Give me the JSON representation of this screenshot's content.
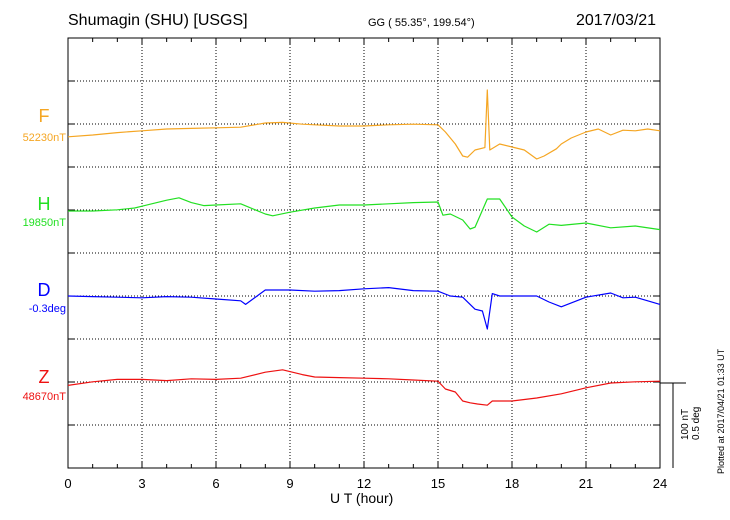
{
  "header": {
    "title": "Shumagin (SHU)  [USGS]",
    "coords": "GG ( 55.35°, 199.54°)",
    "date": "2017/03/21"
  },
  "side": {
    "scale_line1": "100 nT",
    "scale_line2": "0.5 deg",
    "plotted_note": "Plotted at 2017/04/21 01:33 UT"
  },
  "chart_data": {
    "type": "line",
    "xlabel": "U T (hour)",
    "xlim": [
      0,
      24
    ],
    "xticks": [
      "0",
      "3",
      "6",
      "9",
      "12",
      "15",
      "18",
      "21",
      "24"
    ],
    "grid": true,
    "series": [
      {
        "name": "F",
        "baseline": "52230nT",
        "color": "#f5a623",
        "x": [
          0,
          1,
          2,
          3,
          4,
          5,
          6,
          7,
          8,
          8.7,
          9.5,
          10,
          11,
          12,
          13,
          14,
          15,
          15.3,
          15.7,
          16,
          16.2,
          16.5,
          16.9,
          17,
          17.1,
          17.5,
          18,
          18.5,
          19,
          19.3,
          19.8,
          20,
          20.4,
          21,
          21.5,
          22,
          22.5,
          23,
          23.5,
          24
        ],
        "y": [
          -18,
          -15,
          -11,
          -8,
          -5,
          -4,
          -3,
          -2,
          5,
          6,
          3,
          2,
          0,
          0,
          2,
          3,
          2,
          -10,
          -30,
          -50,
          -52,
          -40,
          -36,
          60,
          -40,
          -30,
          -35,
          -40,
          -55,
          -50,
          -38,
          -30,
          -20,
          -10,
          -5,
          -15,
          -7,
          -8,
          -5,
          -8
        ]
      },
      {
        "name": "H",
        "baseline": "19850nT",
        "color": "#22e022",
        "x": [
          0,
          1,
          2,
          2.7,
          3,
          4,
          4.5,
          5,
          5.5,
          6,
          7,
          8,
          8.3,
          9,
          10,
          11,
          12,
          13,
          14,
          15,
          15.2,
          15.5,
          16,
          16.3,
          16.5,
          17,
          17.5,
          18,
          18.5,
          19,
          19.5,
          20,
          21,
          22,
          23,
          24
        ],
        "y": [
          0,
          0,
          2,
          5,
          8,
          18,
          22,
          14,
          9,
          10,
          12,
          -5,
          -8,
          -2,
          5,
          10,
          10,
          12,
          14,
          15,
          -7,
          -5,
          -15,
          -30,
          -27,
          20,
          20,
          -10,
          -25,
          -35,
          -22,
          -24,
          -20,
          -28,
          -25,
          -31
        ]
      },
      {
        "name": "D",
        "baseline": "-0.3deg",
        "color": "#0000ff",
        "x": [
          0,
          1,
          2,
          3,
          4,
          5,
          6,
          7,
          7.2,
          8,
          9,
          10,
          11,
          12,
          13,
          14,
          15,
          15.5,
          16,
          16.5,
          16.8,
          17,
          17.2,
          17.5,
          18,
          19,
          19.5,
          20,
          21,
          22,
          22.5,
          23,
          23.5,
          24
        ],
        "y": [
          0,
          -1,
          -2,
          -3,
          -1,
          -2,
          -5,
          -8,
          -14,
          10,
          10,
          8,
          9,
          12,
          14,
          9,
          8,
          0,
          -2,
          -22,
          -25,
          -55,
          4,
          0,
          0,
          0,
          -10,
          -18,
          -2,
          5,
          -3,
          -2,
          -8,
          -14
        ]
      },
      {
        "name": "Z",
        "baseline": "48670nT",
        "color": "#ee1111",
        "x": [
          0,
          1,
          2,
          3,
          4,
          5,
          6,
          7,
          8,
          8.7,
          9.5,
          10,
          11,
          12,
          13,
          14,
          15,
          15.3,
          15.7,
          16,
          16.3,
          16.6,
          17,
          17.2,
          18,
          19,
          20,
          21,
          22,
          23,
          24
        ],
        "y": [
          -4,
          2,
          6,
          6,
          4,
          7,
          6,
          8,
          18,
          22,
          14,
          10,
          9,
          8,
          7,
          5,
          3,
          -10,
          -15,
          -30,
          -33,
          -35,
          -37,
          -30,
          -30,
          -25,
          -18,
          -8,
          0,
          2,
          3
        ]
      }
    ]
  }
}
